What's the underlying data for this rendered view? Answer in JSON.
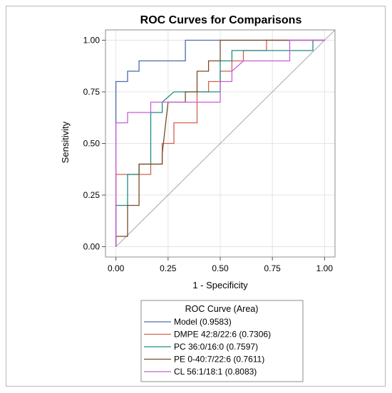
{
  "chart_data": {
    "type": "line",
    "title": "ROC Curves for Comparisons",
    "xlabel": "1 - Specificity",
    "ylabel": "Sensitivity",
    "xlim": [
      -0.05,
      1.05
    ],
    "ylim": [
      -0.05,
      1.05
    ],
    "xticks": [
      "0.00",
      "0.25",
      "0.50",
      "0.75",
      "1.00"
    ],
    "yticks": [
      "0.00",
      "0.25",
      "0.50",
      "0.75",
      "1.00"
    ],
    "grid": true,
    "legend_title": "ROC Curve (Area)",
    "legend_position": "bottom",
    "reference_line": "diagonal",
    "series": [
      {
        "name": "Model  (0.9583)",
        "color": "#4c6aa9",
        "points": [
          [
            0,
            0
          ],
          [
            0,
            0.8
          ],
          [
            0.056,
            0.8
          ],
          [
            0.056,
            0.85
          ],
          [
            0.111,
            0.85
          ],
          [
            0.111,
            0.9
          ],
          [
            0.333,
            0.9
          ],
          [
            0.333,
            1
          ],
          [
            1,
            1
          ]
        ]
      },
      {
        "name": "DMPE 42:8/22:6  (0.7306)",
        "color": "#d2604d",
        "points": [
          [
            0,
            0
          ],
          [
            0,
            0.35
          ],
          [
            0.167,
            0.35
          ],
          [
            0.167,
            0.4
          ],
          [
            0.222,
            0.4
          ],
          [
            0.222,
            0.5
          ],
          [
            0.278,
            0.5
          ],
          [
            0.278,
            0.6
          ],
          [
            0.389,
            0.6
          ],
          [
            0.389,
            0.75
          ],
          [
            0.444,
            0.75
          ],
          [
            0.444,
            0.8
          ],
          [
            0.5,
            0.8
          ],
          [
            0.5,
            0.85
          ],
          [
            0.556,
            0.85
          ],
          [
            0.556,
            0.9
          ],
          [
            0.611,
            0.9
          ],
          [
            0.611,
            0.95
          ],
          [
            0.722,
            0.95
          ],
          [
            0.722,
            1
          ],
          [
            1,
            1
          ]
        ]
      },
      {
        "name": "PC 36:0/16:0  (0.7597)",
        "color": "#1f8c82",
        "points": [
          [
            0,
            0
          ],
          [
            0,
            0.2
          ],
          [
            0.056,
            0.2
          ],
          [
            0.056,
            0.35
          ],
          [
            0.111,
            0.35
          ],
          [
            0.111,
            0.4
          ],
          [
            0.167,
            0.4
          ],
          [
            0.167,
            0.65
          ],
          [
            0.222,
            0.65
          ],
          [
            0.222,
            0.7
          ],
          [
            0.278,
            0.75
          ],
          [
            0.5,
            0.75
          ],
          [
            0.5,
            0.9
          ],
          [
            0.556,
            0.9
          ],
          [
            0.556,
            0.95
          ],
          [
            0.944,
            0.95
          ],
          [
            0.944,
            1
          ],
          [
            1,
            1
          ]
        ]
      },
      {
        "name": "PE 0-40:7/22:6  (0.7611)",
        "color": "#7a4b28",
        "points": [
          [
            0,
            0
          ],
          [
            0,
            0.05
          ],
          [
            0.056,
            0.05
          ],
          [
            0.056,
            0.2
          ],
          [
            0.111,
            0.2
          ],
          [
            0.111,
            0.4
          ],
          [
            0.222,
            0.4
          ],
          [
            0.222,
            0.45
          ],
          [
            0.25,
            0.7
          ],
          [
            0.333,
            0.7
          ],
          [
            0.333,
            0.75
          ],
          [
            0.389,
            0.75
          ],
          [
            0.389,
            0.85
          ],
          [
            0.444,
            0.85
          ],
          [
            0.444,
            0.9
          ],
          [
            0.5,
            0.9
          ],
          [
            0.5,
            1
          ],
          [
            1,
            1
          ]
        ]
      },
      {
        "name": "CL 56:1/18:1  (0.8083)",
        "color": "#c85ed6",
        "points": [
          [
            0,
            0
          ],
          [
            0,
            0.6
          ],
          [
            0.056,
            0.6
          ],
          [
            0.056,
            0.65
          ],
          [
            0.167,
            0.65
          ],
          [
            0.167,
            0.7
          ],
          [
            0.5,
            0.7
          ],
          [
            0.5,
            0.8
          ],
          [
            0.556,
            0.8
          ],
          [
            0.556,
            0.85
          ],
          [
            0.611,
            0.9
          ],
          [
            0.833,
            0.9
          ],
          [
            0.833,
            1
          ],
          [
            1,
            1
          ]
        ]
      }
    ]
  }
}
